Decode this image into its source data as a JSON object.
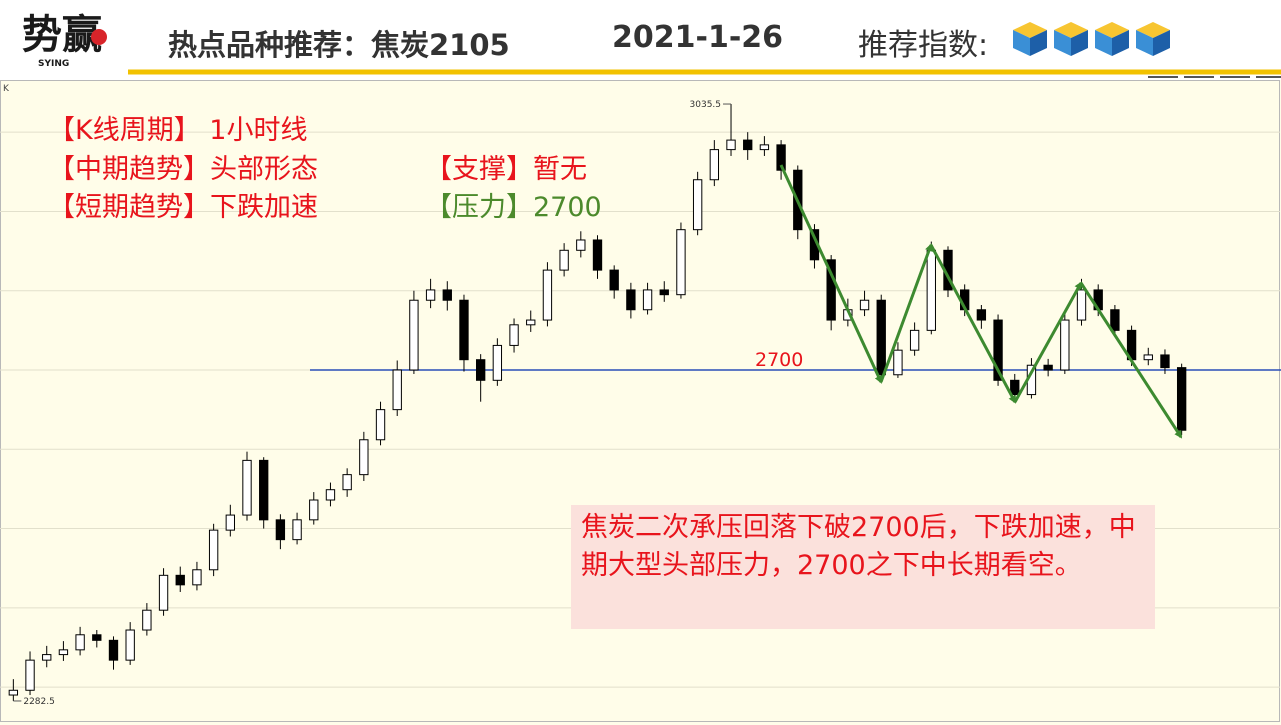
{
  "header": {
    "logo": "势赢",
    "logo_sub": "SYING",
    "title": "热点品种推荐：焦炭2105",
    "date": "2021-1-26",
    "rating_label": "推荐指数:",
    "rating": 4
  },
  "annotations": {
    "period": "【K线周期】 1小时线",
    "mid_trend": "【中期趋势】头部形态",
    "short_trend": "【短期趋势】下跌加速",
    "support": "【支撑】暂无",
    "resistance": "【压力】2700",
    "comment": "焦炭二次承压回落下破2700后，下跌加速，中期大型头部压力，2700之下中长期看空。"
  },
  "chart_data": {
    "type": "candlestick",
    "corner_label": "K",
    "up_color": "#ffffff",
    "down_color": "#000000",
    "ylim": [
      2258.5,
      3059.5
    ],
    "gridlines": [
      2300,
      2400,
      2500,
      2600,
      2700,
      2800,
      2900,
      3000
    ],
    "hline": {
      "value": 2700,
      "color": "#2a4fb8",
      "label_color": "#e8141c"
    },
    "high_label_index": 43,
    "low_label_index": 0,
    "candles": [
      [
        2290,
        2310,
        2282.5,
        2296
      ],
      [
        2296,
        2345,
        2290,
        2334
      ],
      [
        2334,
        2352,
        2325,
        2341
      ],
      [
        2341,
        2358,
        2333,
        2347
      ],
      [
        2347,
        2376,
        2340,
        2366
      ],
      [
        2366,
        2372,
        2350,
        2359
      ],
      [
        2359,
        2364,
        2322,
        2334
      ],
      [
        2334,
        2382,
        2328,
        2372
      ],
      [
        2372,
        2406,
        2365,
        2397
      ],
      [
        2397,
        2450,
        2390,
        2441
      ],
      [
        2441,
        2452,
        2420,
        2429
      ],
      [
        2429,
        2458,
        2422,
        2448
      ],
      [
        2448,
        2506,
        2440,
        2498
      ],
      [
        2498,
        2530,
        2490,
        2517
      ],
      [
        2517,
        2597,
        2510,
        2586
      ],
      [
        2586,
        2590,
        2500,
        2511
      ],
      [
        2511,
        2518,
        2474,
        2486
      ],
      [
        2486,
        2520,
        2480,
        2511
      ],
      [
        2511,
        2546,
        2505,
        2536
      ],
      [
        2536,
        2558,
        2528,
        2549
      ],
      [
        2549,
        2576,
        2540,
        2568
      ],
      [
        2568,
        2622,
        2560,
        2612
      ],
      [
        2612,
        2660,
        2605,
        2650
      ],
      [
        2650,
        2712,
        2642,
        2700
      ],
      [
        2700,
        2800,
        2695,
        2788
      ],
      [
        2788,
        2815,
        2778,
        2801
      ],
      [
        2801,
        2812,
        2775,
        2788
      ],
      [
        2788,
        2795,
        2698,
        2713
      ],
      [
        2713,
        2720,
        2660,
        2687
      ],
      [
        2687,
        2740,
        2680,
        2731
      ],
      [
        2731,
        2765,
        2722,
        2757
      ],
      [
        2757,
        2775,
        2748,
        2763
      ],
      [
        2763,
        2836,
        2755,
        2826
      ],
      [
        2826,
        2860,
        2818,
        2851
      ],
      [
        2851,
        2875,
        2842,
        2864
      ],
      [
        2864,
        2870,
        2815,
        2826
      ],
      [
        2826,
        2832,
        2790,
        2801
      ],
      [
        2801,
        2810,
        2765,
        2776
      ],
      [
        2776,
        2810,
        2770,
        2801
      ],
      [
        2801,
        2812,
        2786,
        2795
      ],
      [
        2795,
        2886,
        2790,
        2877
      ],
      [
        2877,
        2950,
        2870,
        2940
      ],
      [
        2940,
        2990,
        2932,
        2978
      ],
      [
        2978,
        3035.5,
        2970,
        2990
      ],
      [
        2990,
        3000,
        2965,
        2978
      ],
      [
        2978,
        2995,
        2970,
        2984
      ],
      [
        2984,
        2990,
        2940,
        2952
      ],
      [
        2952,
        2958,
        2865,
        2877
      ],
      [
        2877,
        2884,
        2828,
        2839
      ],
      [
        2839,
        2845,
        2750,
        2763
      ],
      [
        2763,
        2790,
        2755,
        2776
      ],
      [
        2776,
        2800,
        2768,
        2788
      ],
      [
        2788,
        2795,
        2688,
        2694
      ],
      [
        2694,
        2735,
        2690,
        2725
      ],
      [
        2725,
        2760,
        2718,
        2750
      ],
      [
        2750,
        2862,
        2745,
        2851
      ],
      [
        2851,
        2856,
        2792,
        2801
      ],
      [
        2801,
        2808,
        2768,
        2776
      ],
      [
        2776,
        2782,
        2752,
        2763
      ],
      [
        2763,
        2770,
        2680,
        2687
      ],
      [
        2687,
        2695,
        2660,
        2669
      ],
      [
        2669,
        2715,
        2664,
        2706
      ],
      [
        2706,
        2714,
        2692,
        2700
      ],
      [
        2700,
        2772,
        2695,
        2763
      ],
      [
        2763,
        2815,
        2756,
        2801
      ],
      [
        2801,
        2808,
        2768,
        2776
      ],
      [
        2776,
        2782,
        2742,
        2750
      ],
      [
        2750,
        2756,
        2705,
        2713
      ],
      [
        2713,
        2728,
        2706,
        2719
      ],
      [
        2719,
        2726,
        2695,
        2703
      ],
      [
        2703,
        2708,
        2618,
        2624
      ]
    ]
  }
}
